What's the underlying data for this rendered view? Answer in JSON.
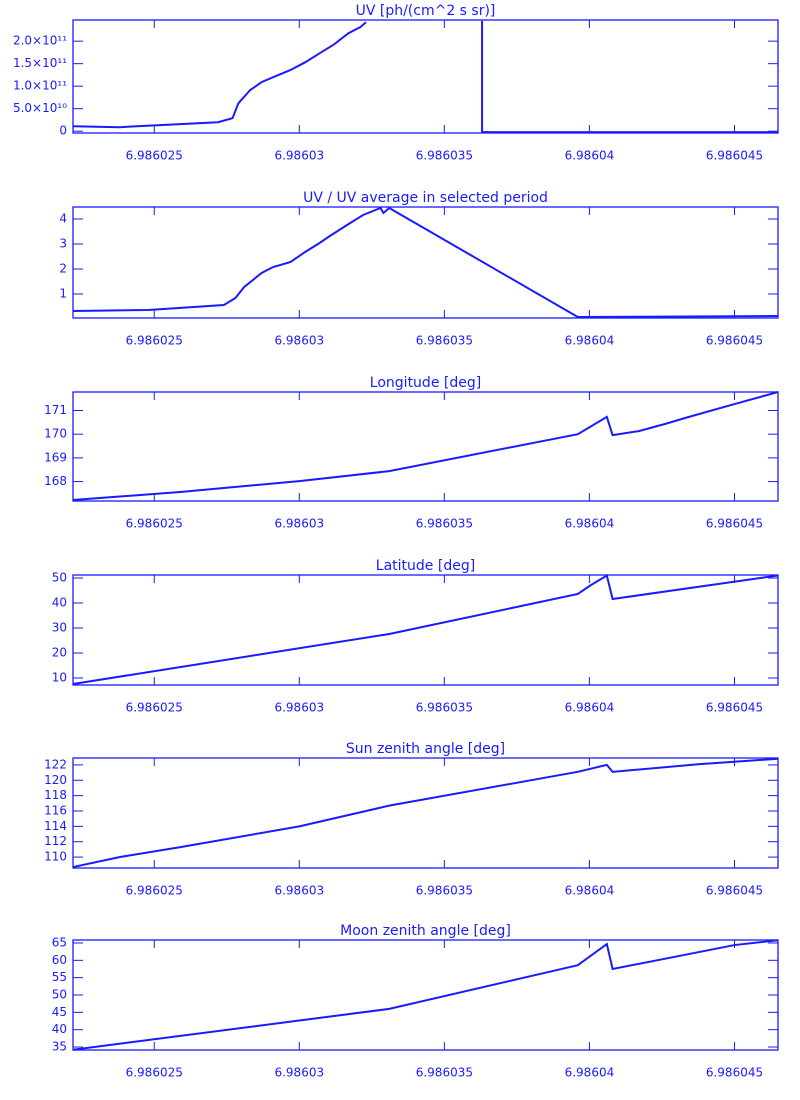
{
  "chart_data": [
    {
      "type": "line",
      "title": "UV [ph/(cm^2 s sr)]",
      "color": "#1a1aff",
      "x": [
        6.9860222,
        6.9860238,
        6.9860272,
        6.9860277,
        6.9860279,
        6.9860283,
        6.9860287,
        6.9860291,
        6.9860297,
        6.9860302,
        6.9860307,
        6.9860312,
        6.9860317,
        6.9860321,
        6.9860323,
        6.9860323,
        6.9860363,
        6.9860363,
        6.9860465
      ],
      "values": [
        11000000000,
        8900000000,
        20000000000,
        29000000000,
        62000000000,
        91000000000,
        109000000000,
        120000000000,
        136000000000,
        153000000000,
        173000000000,
        193000000000,
        218000000000,
        231000000000,
        242000000000,
        null,
        245000000000,
        -2000000000,
        -2000000000
      ],
      "xlim": [
        6.9860222,
        6.9860465
      ],
      "xticks": [
        6.986025,
        6.98603,
        6.986035,
        6.98604,
        6.986045
      ],
      "ylim": [
        -4000000000,
        247000000000
      ],
      "yticks": [
        0,
        {
          "value": 50000000000,
          "label": "5.0×10¹⁰"
        },
        {
          "value": 100000000000,
          "label": "1.0×10¹¹"
        },
        {
          "value": 150000000000,
          "label": "1.5×10¹¹"
        },
        {
          "value": 200000000000,
          "label": "2.0×10¹¹"
        }
      ]
    },
    {
      "type": "line",
      "title": "UV / UV average in selected period",
      "color": "#1a1aff",
      "x": [
        6.9860222,
        6.9860248,
        6.9860274,
        6.9860278,
        6.9860281,
        6.9860287,
        6.9860291,
        6.9860297,
        6.9860302,
        6.9860307,
        6.986031,
        6.9860317,
        6.9860322,
        6.9860328,
        6.9860329,
        6.9860331,
        6.9860396,
        6.9860465
      ],
      "values": [
        0.32,
        0.36,
        0.56,
        0.84,
        1.28,
        1.84,
        2.08,
        2.28,
        2.68,
        3.04,
        3.28,
        3.8,
        4.16,
        4.44,
        4.24,
        4.44,
        0.08,
        0.12
      ],
      "xlim": [
        6.9860222,
        6.9860465
      ],
      "xticks": [
        6.986025,
        6.98603,
        6.986035,
        6.98604,
        6.986045
      ],
      "ylim": [
        0.04,
        4.48
      ],
      "yticks": [
        1,
        2,
        3,
        4
      ]
    },
    {
      "type": "line",
      "title": "Longitude [deg]",
      "color": "#1a1aff",
      "x": [
        6.9860222,
        6.9860259,
        6.98603,
        6.9860331,
        6.9860396,
        6.9860406,
        6.9860408,
        6.9860417,
        6.9860426,
        6.9860434,
        6.986045,
        6.9860465
      ],
      "values": [
        167.22,
        167.56,
        168.02,
        168.44,
        170.0,
        170.73,
        169.96,
        170.13,
        170.43,
        170.72,
        171.27,
        171.78
      ],
      "xlim": [
        6.9860222,
        6.9860465
      ],
      "xticks": [
        6.986025,
        6.98603,
        6.986035,
        6.98604,
        6.986045
      ],
      "ylim": [
        167.18,
        171.78
      ],
      "yticks": [
        168,
        169,
        170,
        171
      ]
    },
    {
      "type": "line",
      "title": "Latitude [deg]",
      "color": "#1a1aff",
      "x": [
        6.9860222,
        6.9860331,
        6.9860396,
        6.98604,
        6.9860406,
        6.9860408,
        6.9860465
      ],
      "values": [
        7.6,
        27.6,
        43.6,
        46.8,
        51.0,
        41.6,
        51.0
      ],
      "xlim": [
        6.9860222,
        6.9860465
      ],
      "xticks": [
        6.986025,
        6.98603,
        6.986035,
        6.98604,
        6.986045
      ],
      "ylim": [
        7.2,
        51.2
      ],
      "yticks": [
        10,
        20,
        30,
        40,
        50
      ]
    },
    {
      "type": "line",
      "title": "Sun zenith angle [deg]",
      "color": "#1a1aff",
      "x": [
        6.9860222,
        6.9860238,
        6.9860259,
        6.98603,
        6.9860331,
        6.9860396,
        6.9860406,
        6.9860408,
        6.9860438,
        6.9860465
      ],
      "values": [
        108.7,
        110.0,
        111.3,
        114.0,
        116.7,
        121.1,
        122.0,
        121.1,
        122.1,
        122.8
      ],
      "xlim": [
        6.9860222,
        6.9860465
      ],
      "xticks": [
        6.986025,
        6.98603,
        6.986035,
        6.98604,
        6.986045
      ],
      "ylim": [
        108.58,
        122.9
      ],
      "yticks": [
        110,
        112,
        114,
        116,
        118,
        120,
        122
      ]
    },
    {
      "type": "line",
      "title": "Moon zenith angle [deg]",
      "color": "#1a1aff",
      "x": [
        6.9860222,
        6.9860331,
        6.9860396,
        6.9860406,
        6.9860408,
        6.986045,
        6.9860465
      ],
      "values": [
        34.2,
        46.0,
        58.6,
        64.7,
        57.5,
        64.4,
        65.8
      ],
      "xlim": [
        6.9860222,
        6.9860465
      ],
      "xticks": [
        6.986025,
        6.98603,
        6.986035,
        6.98604,
        6.986045
      ],
      "ylim": [
        34.14,
        65.86
      ],
      "yticks": [
        35,
        40,
        45,
        50,
        55,
        60,
        65
      ]
    }
  ]
}
